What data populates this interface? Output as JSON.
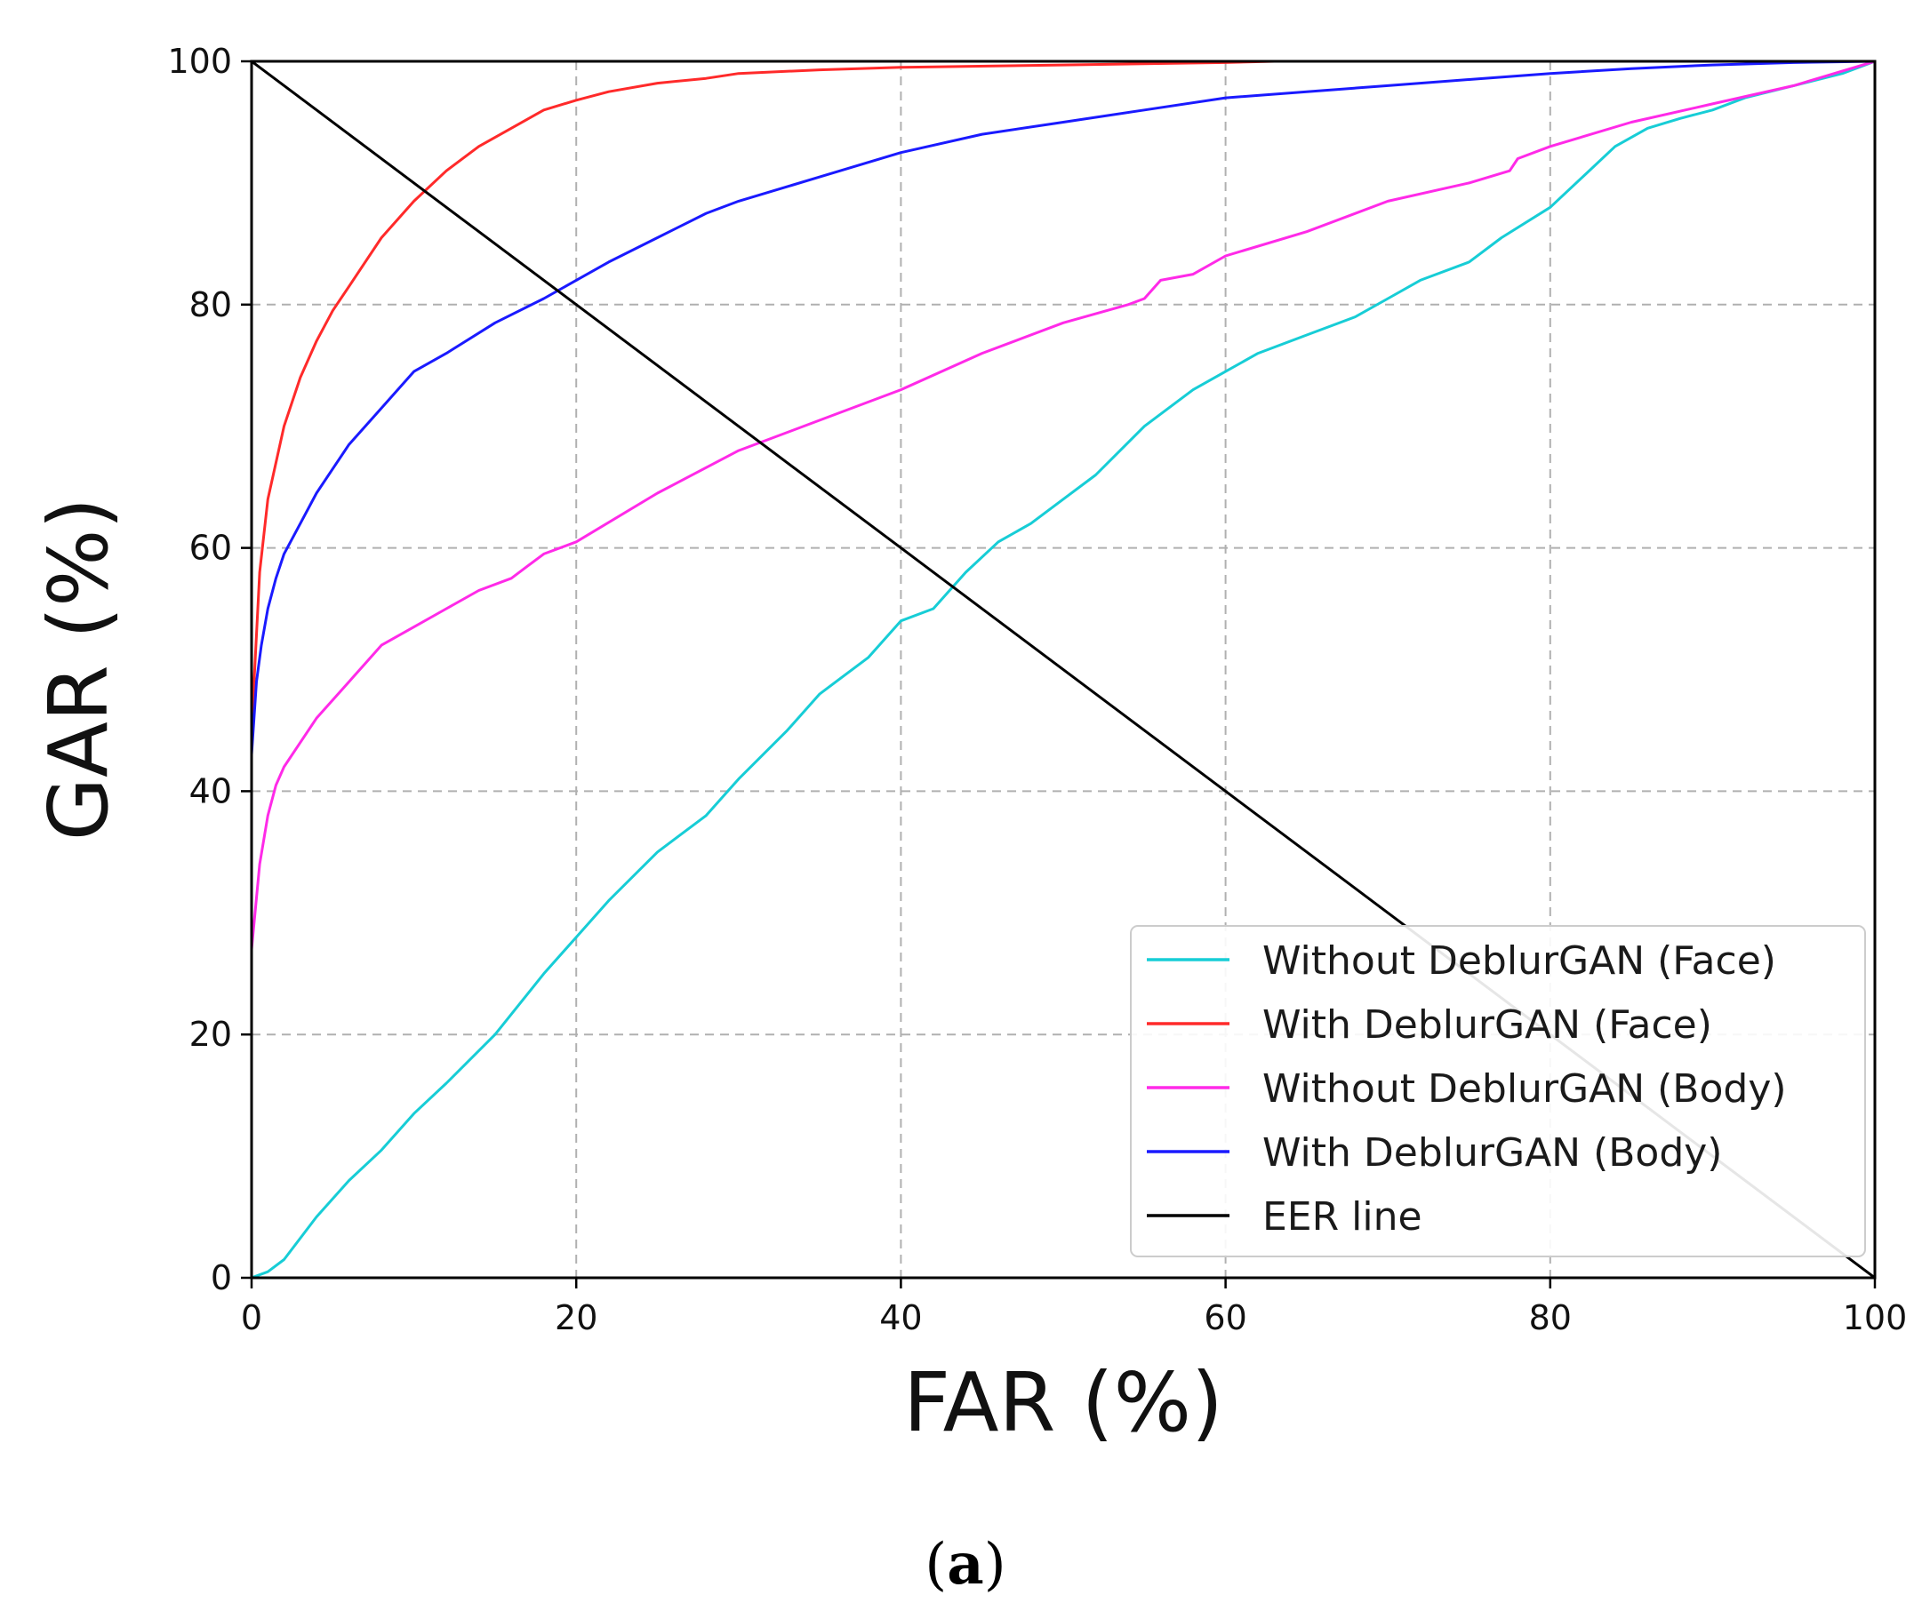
{
  "chart_data": {
    "type": "line",
    "title": "",
    "xlabel": "FAR (%)",
    "ylabel": "GAR (%)",
    "xlim": [
      0,
      100
    ],
    "ylim": [
      0,
      100
    ],
    "xticks": [
      0,
      20,
      40,
      60,
      80,
      100
    ],
    "yticks": [
      0,
      20,
      40,
      60,
      80,
      100
    ],
    "grid": true,
    "legend_position": "bottom-right",
    "series": [
      {
        "name": "Without DeblurGAN (Face)",
        "color": "#17cdd6",
        "x": [
          0,
          1,
          2,
          4,
          6,
          8,
          10,
          12,
          15,
          18,
          20,
          22,
          25,
          28,
          30,
          33,
          35,
          38,
          40,
          42,
          44,
          46,
          48,
          50,
          52,
          55,
          58,
          60,
          62,
          65,
          68,
          70,
          72,
          75,
          77,
          80,
          82,
          84,
          86,
          88,
          90,
          92,
          95,
          98,
          100
        ],
        "y": [
          0,
          0.5,
          1.5,
          5,
          8,
          10.5,
          13.5,
          16,
          20,
          25,
          28,
          31,
          35,
          38,
          41,
          45,
          48,
          51,
          54,
          55,
          58,
          60.5,
          62,
          64,
          66,
          70,
          73,
          74.5,
          76,
          77.5,
          79,
          80.5,
          82,
          83.5,
          85.5,
          88,
          90.5,
          93,
          94.5,
          95.3,
          96,
          97,
          98,
          99,
          100
        ]
      },
      {
        "name": "With DeblurGAN (Face)",
        "color": "#ff2a2a",
        "x": [
          0,
          0.5,
          1,
          2,
          3,
          4,
          5,
          6,
          7,
          8,
          9,
          10,
          12,
          14,
          16,
          18,
          20,
          22,
          25,
          28,
          30,
          35,
          40,
          50,
          60,
          63,
          100
        ],
        "y": [
          45,
          58,
          64,
          70,
          74,
          77,
          79.5,
          81.5,
          83.5,
          85.5,
          87,
          88.5,
          91,
          93,
          94.5,
          96,
          96.8,
          97.5,
          98.2,
          98.6,
          99,
          99.3,
          99.5,
          99.7,
          99.9,
          100,
          100
        ]
      },
      {
        "name": "Without DeblurGAN (Body)",
        "color": "#ff2ae8",
        "x": [
          0,
          0.5,
          1,
          1.5,
          2,
          3,
          4,
          5,
          6,
          7,
          8,
          10,
          12,
          14,
          16,
          17,
          18,
          20,
          25,
          30,
          35,
          40,
          45,
          50,
          54,
          55,
          56,
          58,
          60,
          65,
          70,
          75,
          77.5,
          78,
          80,
          85,
          90,
          95,
          100
        ],
        "y": [
          27,
          34,
          38,
          40.5,
          42,
          44,
          46,
          47.5,
          49,
          50.5,
          52,
          53.5,
          55,
          56.5,
          57.5,
          58.5,
          59.5,
          60.5,
          64.5,
          68,
          70.5,
          73,
          76,
          78.5,
          80,
          80.5,
          82,
          82.5,
          84,
          86,
          88.5,
          90,
          91,
          92,
          93,
          95,
          96.5,
          98,
          100
        ]
      },
      {
        "name": "With DeblurGAN (Body)",
        "color": "#1a1aff",
        "x": [
          0,
          0.3,
          0.6,
          1,
          1.5,
          2,
          3,
          4,
          5,
          6,
          8,
          10,
          12,
          15,
          18,
          20,
          22,
          25,
          28,
          30,
          35,
          40,
          45,
          50,
          55,
          60,
          65,
          70,
          75,
          80,
          85,
          90,
          95,
          100
        ],
        "y": [
          43,
          49,
          52,
          55,
          57.5,
          59.5,
          62,
          64.5,
          66.5,
          68.5,
          71.5,
          74.5,
          76,
          78.5,
          80.5,
          82,
          83.5,
          85.5,
          87.5,
          88.5,
          90.5,
          92.5,
          94,
          95,
          96,
          97,
          97.5,
          98,
          98.5,
          99,
          99.4,
          99.7,
          99.9,
          100
        ]
      },
      {
        "name": "EER line",
        "color": "#000000",
        "x": [
          0,
          100
        ],
        "y": [
          100,
          0
        ]
      }
    ],
    "caption": {
      "open": "(",
      "letter": "a",
      "close": ")"
    }
  }
}
